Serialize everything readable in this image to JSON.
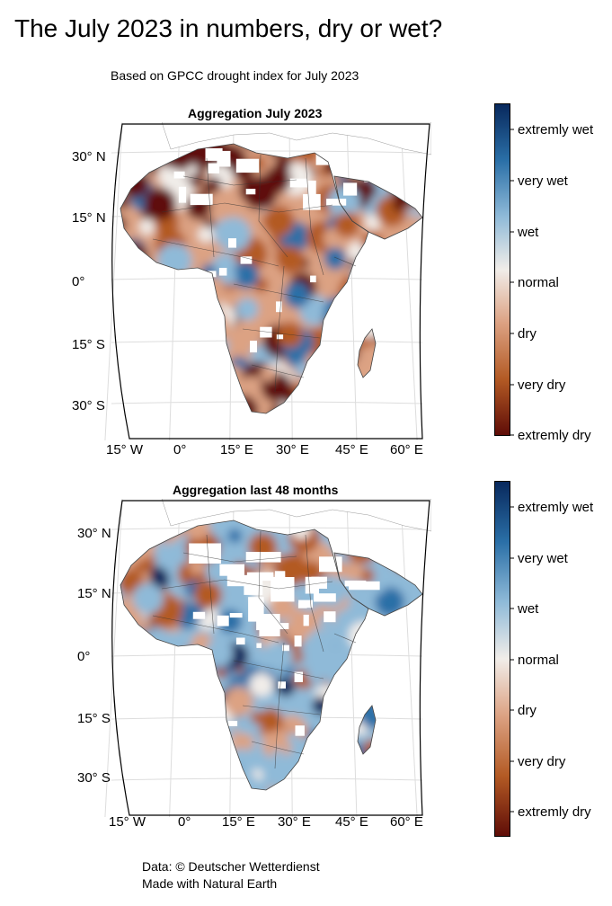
{
  "title": "The July 2023 in numbers, dry or wet?",
  "subtitle": "Based on GPCC drought index for July 2023",
  "panels": [
    {
      "title": "Aggregation July 2023",
      "lat_ticks": [
        "30° N",
        "15° N",
        "0°",
        "15° S",
        "30° S"
      ],
      "lon_ticks": [
        "15° W",
        "0°",
        "15° E",
        "30° E",
        "45° E",
        "60° E"
      ],
      "field": "mostly dry",
      "colorbar": [
        "extremly wet",
        "very wet",
        "wet",
        "normal",
        "dry",
        "very dry",
        "extremly dry"
      ]
    },
    {
      "title": "Aggregation last 48 months",
      "lat_ticks": [
        "30° N",
        "15° N",
        "0°",
        "15° S",
        "30° S"
      ],
      "lon_ticks": [
        "15° W",
        "0°",
        "15° E",
        "30° E",
        "45° E",
        "60° E"
      ],
      "field": "mostly wet",
      "colorbar": [
        "extremly wet",
        "very wet",
        "wet",
        "normal",
        "dry",
        "very dry",
        "extremly dry"
      ]
    }
  ],
  "colors": {
    "extremly_wet": "#08285c",
    "very_wet": "#2a6fa7",
    "wet": "#8fbad8",
    "normal": "#f1ede9",
    "dry": "#dca283",
    "very_dry": "#b35a24",
    "extremly_dry": "#5e0c07"
  },
  "credits": [
    "Data: © Deutscher Wetterdienst",
    "Made with Natural Earth"
  ]
}
